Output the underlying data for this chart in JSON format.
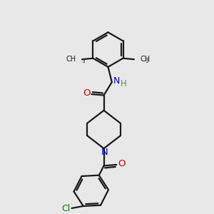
{
  "background_color": "#e8e8e8",
  "bond_color": "#1a1a1a",
  "blue": "#0000cc",
  "red": "#cc0000",
  "green": "#008000",
  "green_h": "#4a9a4a",
  "figsize": [
    3.0,
    3.0
  ],
  "dpi": 100,
  "xlim": [
    0,
    10
  ],
  "ylim": [
    0,
    10
  ]
}
